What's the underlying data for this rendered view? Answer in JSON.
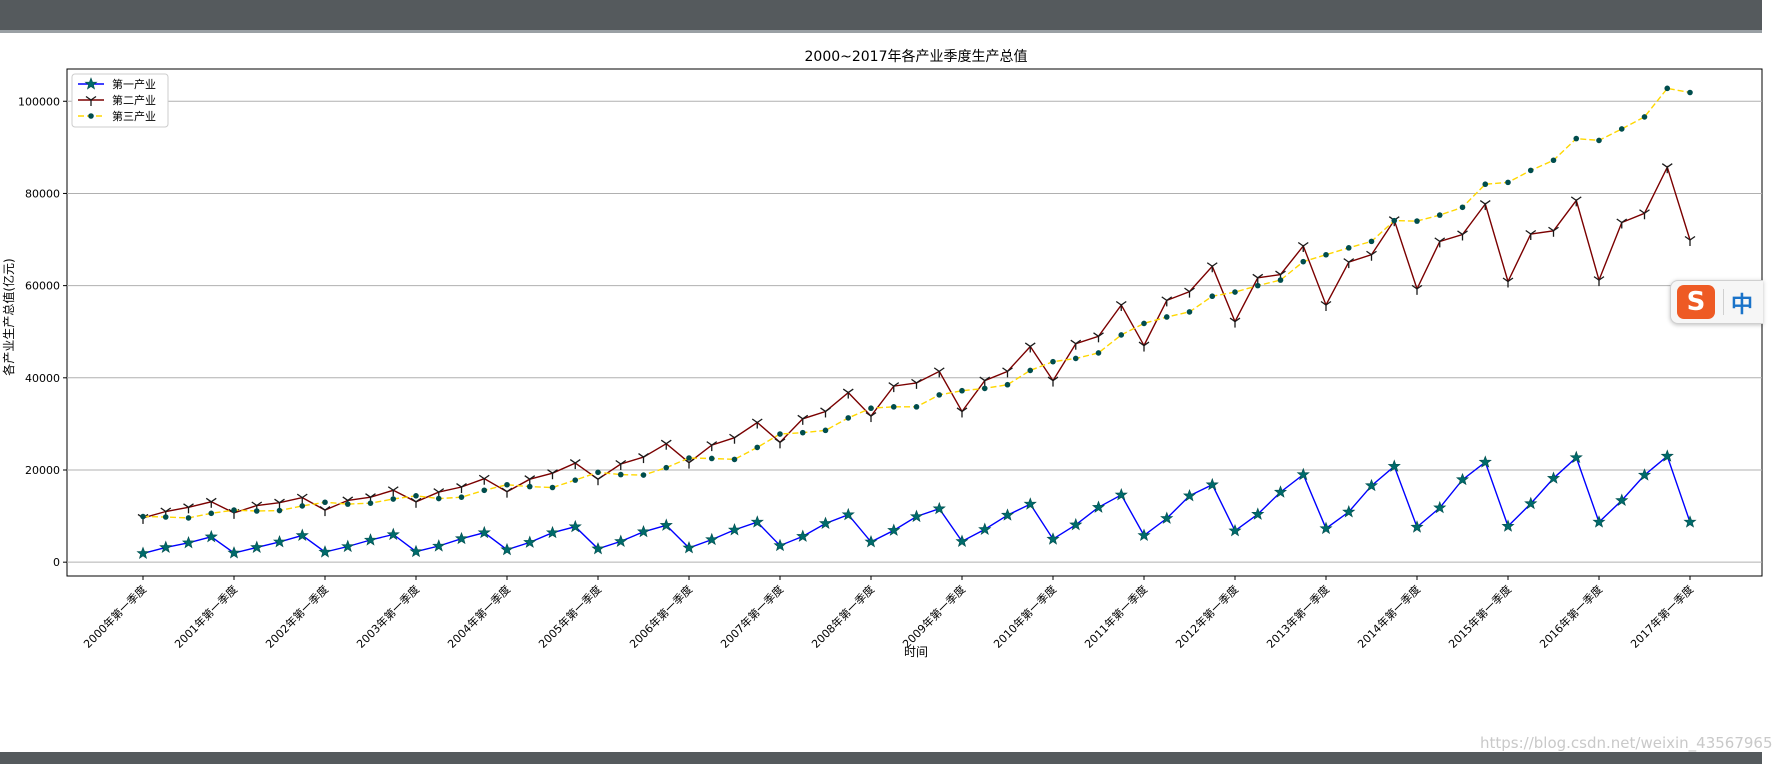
{
  "chart_data": {
    "type": "line",
    "title": "2000~2017年各产业季度生产总值",
    "xlabel": "时间",
    "ylabel": "各产业生产总值(亿元)",
    "ylim": [
      -3000,
      107000
    ],
    "yticks": [
      0,
      20000,
      40000,
      60000,
      80000,
      100000
    ],
    "grid": "horizontal",
    "legend_position": "top-left",
    "tick_labels": [
      "2000年第一季度",
      "2001年第一季度",
      "2002年第一季度",
      "2003年第一季度",
      "2004年第一季度",
      "2005年第一季度",
      "2006年第一季度",
      "2007年第一季度",
      "2008年第一季度",
      "2009年第一季度",
      "2010年第一季度",
      "2011年第一季度",
      "2012年第一季度",
      "2013年第一季度",
      "2014年第一季度",
      "2015年第一季度",
      "2016年第一季度",
      "2017年第一季度"
    ],
    "series": [
      {
        "name": "第一产业",
        "color": "#0000ff",
        "marker": "star",
        "linestyle": "solid",
        "values": [
          1900,
          3200,
          4200,
          5500,
          2000,
          3200,
          4400,
          5800,
          2200,
          3400,
          4800,
          6000,
          2300,
          3500,
          5100,
          6400,
          2700,
          4300,
          6400,
          7700,
          2900,
          4500,
          6600,
          8000,
          3100,
          4900,
          7000,
          8700,
          3600,
          5600,
          8400,
          10300,
          4400,
          6900,
          9900,
          11600,
          4500,
          7100,
          10200,
          12600,
          5000,
          8100,
          11900,
          14600,
          5800,
          9500,
          14400,
          16800,
          6800,
          10400,
          15200,
          19000,
          7300,
          10900,
          16600,
          20800,
          7600,
          11800,
          17900,
          21700,
          7800,
          12700,
          18200,
          22700,
          8700,
          13400,
          18900,
          23000,
          8700
        ]
      },
      {
        "name": "第二产业",
        "color": "#7b0000",
        "marker": "tri_down",
        "linestyle": "solid",
        "values": [
          9600,
          11000,
          11900,
          13100,
          10700,
          12300,
          12900,
          14000,
          11300,
          13400,
          14100,
          15600,
          13100,
          15200,
          16300,
          18100,
          15300,
          18000,
          19300,
          21500,
          18000,
          21300,
          22800,
          25700,
          21600,
          25400,
          27000,
          30300,
          26000,
          31100,
          32700,
          36800,
          31700,
          38200,
          38900,
          41400,
          32700,
          39400,
          41400,
          46800,
          39400,
          47400,
          49000,
          55800,
          47000,
          56800,
          58700,
          64200,
          52200,
          61700,
          62400,
          68600,
          55800,
          65100,
          66700,
          74200,
          59300,
          69600,
          71100,
          77700,
          60900,
          71200,
          71900,
          78500,
          61200,
          73700,
          75700,
          85700,
          69900
        ]
      },
      {
        "name": "第三产业",
        "color": "#ffd700",
        "marker": "dot",
        "linestyle": "dashed",
        "values": [
          9900,
          9800,
          9600,
          10600,
          11300,
          11100,
          11200,
          12200,
          13000,
          12600,
          12800,
          13700,
          14400,
          13800,
          14100,
          15600,
          16800,
          16400,
          16200,
          17800,
          19500,
          19000,
          18900,
          20500,
          22600,
          22500,
          22300,
          24900,
          27800,
          28100,
          28600,
          31300,
          33400,
          33700,
          33700,
          36300,
          37200,
          37700,
          38500,
          41600,
          43500,
          44200,
          45400,
          49300,
          51800,
          53200,
          54300,
          57700,
          58600,
          60000,
          61200,
          65200,
          66700,
          68200,
          69600,
          74100,
          74000,
          75300,
          77000,
          82000,
          82400,
          85000,
          87200,
          91900,
          91500,
          94000,
          96600,
          102800,
          101900
        ]
      }
    ]
  },
  "overlay": {
    "ime_logo": "S",
    "ime_language": "中",
    "watermark": "https://blog.csdn.net/weixin_43567965"
  }
}
